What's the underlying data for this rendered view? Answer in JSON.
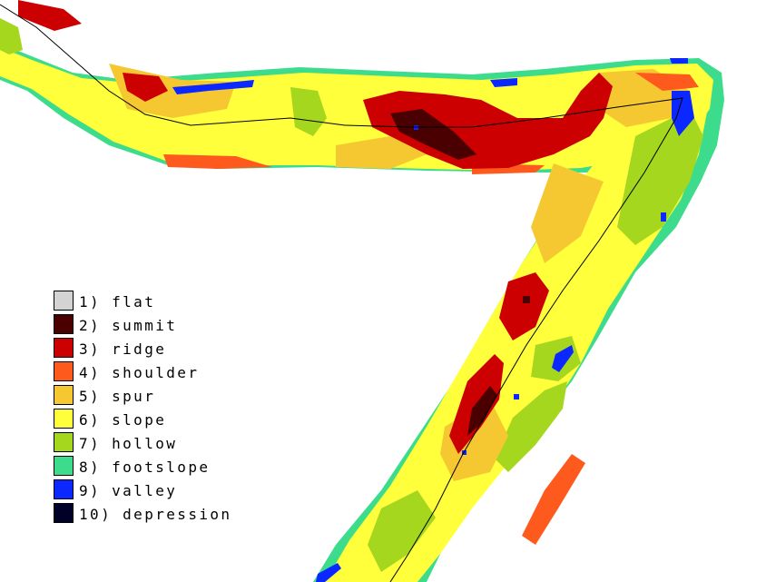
{
  "legend": [
    {
      "label": "1) flat",
      "color": "#d3d3d3"
    },
    {
      "label": "2) summit",
      "color": "#4a0000"
    },
    {
      "label": "3) ridge",
      "color": "#cc0000"
    },
    {
      "label": "4) shoulder",
      "color": "#ff5a1e"
    },
    {
      "label": "5) spur",
      "color": "#f5c832"
    },
    {
      "label": "6) slope",
      "color": "#ffff3c"
    },
    {
      "label": "7) hollow",
      "color": "#a5d71e"
    },
    {
      "label": "8) footslope",
      "color": "#3cdc8c"
    },
    {
      "label": "9) valley",
      "color": "#0a28ff"
    },
    {
      "label": "10) depression",
      "color": "#000028"
    }
  ]
}
